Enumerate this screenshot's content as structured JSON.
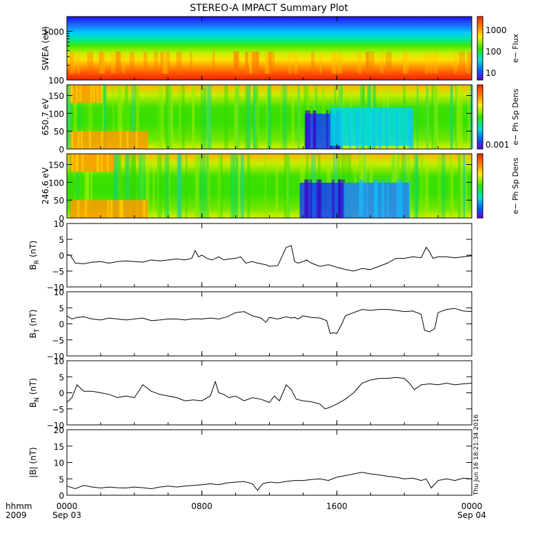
{
  "chart_data": {
    "title": "STEREO-A IMPACT Summary Plot",
    "footer": {
      "row1_label": "hhmm",
      "row2_label": "2009",
      "x_ticks": [
        {
          "hhmm": "0000",
          "date": "Sep 03",
          "t": 0
        },
        {
          "hhmm": "0800",
          "date": "",
          "t": 8
        },
        {
          "hhmm": "1600",
          "date": "",
          "t": 16
        },
        {
          "hhmm": "0000",
          "date": "Sep 04",
          "t": 24
        }
      ],
      "xlim": [
        0,
        24
      ]
    },
    "timestamp": "Thu Jun 16 18:21:34 2016",
    "panels": [
      {
        "type": "heatmap",
        "ylabel": "SWEA (eV)",
        "yscale": "log",
        "ylim": [
          100,
          2000
        ],
        "y_ticks": [
          {
            "v": 100,
            "label": "100"
          },
          {
            "v": 1000,
            "label": "1000"
          }
        ],
        "colorbar": {
          "label": "e− Flux",
          "ticks": [
            "1000",
            "100",
            "10"
          ]
        },
        "description_bands": [
          "red",
          "orange",
          "yellow",
          "green",
          "cyan",
          "blue"
        ]
      },
      {
        "type": "heatmap",
        "ylabel": "650.7 eV",
        "ylim": [
          0,
          180
        ],
        "y_ticks": [
          "0",
          "50",
          "100",
          "150"
        ],
        "colorbar": {
          "label": "e− Ph Sp Dens",
          "ticks": [
            "0.001"
          ]
        },
        "dropouts": [
          {
            "start": 14.1,
            "end": 16.2,
            "level": "blue"
          },
          {
            "start": 15.6,
            "end": 20.5,
            "level": "cyan"
          }
        ],
        "hot_spots": [
          {
            "start": 0.2,
            "end": 4.8,
            "ymin": 0,
            "ymax": 50
          },
          {
            "start": 0.2,
            "end": 2.0,
            "ymin": 130,
            "ymax": 180
          }
        ]
      },
      {
        "type": "heatmap",
        "ylabel": "246.6 eV",
        "ylim": [
          0,
          180
        ],
        "y_ticks": [
          "0",
          "50",
          "100",
          "150"
        ],
        "colorbar": {
          "label": "e− Ph Sp Dens",
          "ticks": []
        },
        "dropouts": [
          {
            "start": 13.8,
            "end": 16.4,
            "level": "blue"
          },
          {
            "start": 16.4,
            "end": 20.3,
            "level": "blue-cyan"
          }
        ],
        "hot_spots": [
          {
            "start": 0.2,
            "end": 4.8,
            "ymin": 0,
            "ymax": 50
          },
          {
            "start": 0.2,
            "end": 2.8,
            "ymin": 130,
            "ymax": 180
          }
        ]
      },
      {
        "type": "line",
        "ylabel": "B",
        "ylabel_sub": "R",
        "ylabel_unit": " (nT)",
        "ylim": [
          -10,
          10
        ],
        "y_ticks": [
          "−10",
          "−5",
          "0",
          "5",
          "10"
        ],
        "x": [
          0,
          0.2,
          0.5,
          1,
          1.5,
          2,
          2.5,
          3,
          3.5,
          4,
          4.5,
          5,
          5.5,
          6,
          6.5,
          7,
          7.4,
          7.6,
          7.8,
          8,
          8.3,
          8.6,
          9,
          9.3,
          9.6,
          10,
          10.3,
          10.6,
          11,
          11.3,
          11.6,
          11.8,
          12,
          12.5,
          13,
          13.3,
          13.5,
          13.7,
          14,
          14.2,
          14.5,
          15,
          15.5,
          16,
          16.5,
          17,
          17.5,
          18,
          18.5,
          19,
          19.5,
          20,
          20.5,
          21,
          21.3,
          21.5,
          21.7,
          22,
          22.5,
          23,
          23.5,
          24
        ],
        "values": [
          0.2,
          0,
          -2.5,
          -2.7,
          -2.2,
          -2,
          -2.5,
          -2,
          -1.8,
          -2,
          -2.2,
          -1.5,
          -1.8,
          -1.5,
          -1.2,
          -1.5,
          -1,
          1.5,
          -0.5,
          0,
          -1,
          -1.5,
          -0.5,
          -1.5,
          -1.2,
          -1,
          -0.5,
          -2.5,
          -2,
          -2.5,
          -2.8,
          -3,
          -3.5,
          -3.3,
          2.5,
          3,
          -2,
          -2.5,
          -2,
          -1.5,
          -2.5,
          -3.5,
          -3,
          -3.8,
          -4.5,
          -5,
          -4.2,
          -4.5,
          -3.5,
          -2.5,
          -1,
          -1,
          -0.5,
          -0.8,
          2.5,
          1,
          -1,
          -0.5,
          -0.5,
          -0.8,
          -0.5,
          -0.2
        ]
      },
      {
        "type": "line",
        "ylabel": "B",
        "ylabel_sub": "T",
        "ylabel_unit": " (nT)",
        "ylim": [
          -10,
          10
        ],
        "y_ticks": [
          "−10",
          "−5",
          "0",
          "5",
          "10"
        ],
        "x": [
          0,
          0.3,
          0.6,
          1,
          1.5,
          2,
          2.5,
          3,
          3.5,
          4,
          4.5,
          5,
          5.5,
          6,
          6.5,
          7,
          7.5,
          8,
          8.5,
          9,
          9.5,
          10,
          10.5,
          11,
          11.5,
          11.8,
          12,
          12.5,
          13,
          13.3,
          13.5,
          13.7,
          14,
          14.5,
          15,
          15.4,
          15.6,
          15.8,
          16,
          16.3,
          16.5,
          17,
          17.5,
          18,
          18.5,
          19,
          19.5,
          20,
          20.5,
          21,
          21.2,
          21.5,
          21.8,
          22,
          22.5,
          23,
          23.5,
          24
        ],
        "values": [
          2.5,
          1.5,
          2,
          2.2,
          1.5,
          1.2,
          1.8,
          1.5,
          1.2,
          1.5,
          1.8,
          1,
          1.2,
          1.5,
          1.5,
          1.2,
          1.6,
          1.5,
          1.8,
          1.5,
          2.2,
          3.5,
          3.8,
          2.5,
          1.8,
          0.5,
          2,
          1.5,
          2.2,
          1.8,
          2,
          1.5,
          2.5,
          2,
          1.8,
          1,
          -3,
          -2.8,
          -3,
          0,
          2.5,
          3.5,
          4.5,
          4.2,
          4.5,
          4.5,
          4.2,
          3.8,
          4,
          3,
          -2,
          -2.5,
          -1.5,
          3.5,
          4.5,
          4.8,
          4,
          3.8
        ]
      },
      {
        "type": "line",
        "ylabel": "B",
        "ylabel_sub": "N",
        "ylabel_unit": " (nT)",
        "ylim": [
          -10,
          10
        ],
        "y_ticks": [
          "−10",
          "−5",
          "0",
          "5",
          "10"
        ],
        "x": [
          0,
          0.3,
          0.6,
          1,
          1.5,
          2,
          2.5,
          3,
          3.5,
          4,
          4.5,
          5,
          5.5,
          6,
          6.5,
          7,
          7.5,
          8,
          8.5,
          8.8,
          9,
          9.3,
          9.6,
          10,
          10.5,
          11,
          11.5,
          12,
          12.3,
          12.6,
          13,
          13.3,
          13.6,
          14,
          14.5,
          15,
          15.3,
          15.6,
          16,
          16.5,
          17,
          17.5,
          18,
          18.5,
          19,
          19.5,
          20,
          20.3,
          20.6,
          21,
          21.5,
          22,
          22.5,
          23,
          23.5,
          24
        ],
        "values": [
          -3,
          -1.5,
          2.5,
          0.5,
          0.5,
          0,
          -0.5,
          -1.5,
          -1,
          -1.5,
          2.5,
          0.5,
          -0.5,
          -1,
          -1.5,
          -2.5,
          -2.2,
          -2.5,
          -1,
          3.5,
          0,
          -0.5,
          -1.5,
          -1,
          -2.5,
          -1.5,
          -2,
          -3,
          -1,
          -2.5,
          2.5,
          1,
          -2,
          -2.5,
          -2.8,
          -3.5,
          -5,
          -4.5,
          -3.5,
          -2,
          0,
          3,
          4,
          4.5,
          4.5,
          4.8,
          4.5,
          3,
          1,
          2.5,
          2.8,
          2.5,
          3,
          2.5,
          2.8,
          3
        ]
      },
      {
        "type": "line",
        "ylabel": "|B| (nT)",
        "ylim": [
          0,
          20
        ],
        "y_ticks": [
          "0",
          "5",
          "10",
          "15",
          "20"
        ],
        "x": [
          0,
          0.5,
          1,
          1.5,
          2,
          2.5,
          3,
          3.5,
          4,
          4.5,
          5,
          5.5,
          6,
          6.5,
          7,
          7.5,
          8,
          8.5,
          9,
          9.5,
          10,
          10.5,
          11,
          11.3,
          11.6,
          12,
          12.5,
          13,
          13.5,
          14,
          14.5,
          15,
          15.5,
          16,
          16.5,
          17,
          17.5,
          18,
          18.5,
          19,
          19.5,
          20,
          20.5,
          21,
          21.3,
          21.6,
          22,
          22.5,
          23,
          23.5,
          24
        ],
        "values": [
          2.8,
          2,
          3,
          2.5,
          2.2,
          2.5,
          2.3,
          2.2,
          2.5,
          2.3,
          2,
          2.5,
          2.8,
          2.5,
          2.8,
          3,
          3.2,
          3.5,
          3.2,
          3.8,
          4,
          4.2,
          3.5,
          1.5,
          3.5,
          4,
          3.8,
          4.2,
          4.5,
          4.5,
          4.8,
          5,
          4.5,
          5.5,
          6,
          6.5,
          7,
          6.5,
          6.2,
          5.8,
          5.5,
          5,
          5.2,
          4.5,
          5,
          2.2,
          4.5,
          5,
          4.5,
          5.2,
          5
        ]
      }
    ]
  }
}
